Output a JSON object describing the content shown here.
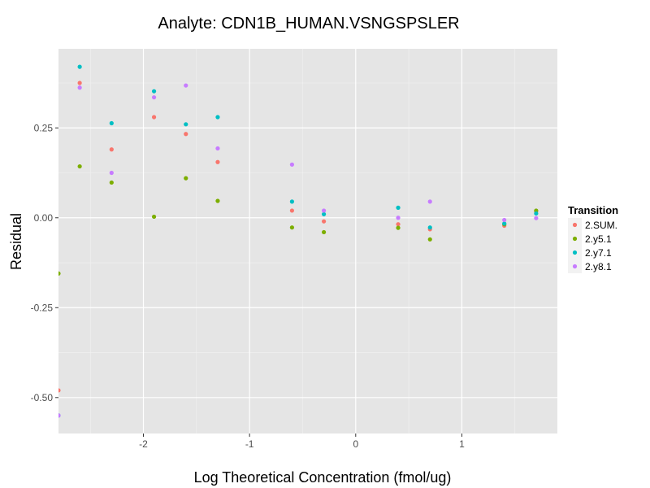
{
  "chart_data": {
    "type": "scatter",
    "title": "Analyte: CDN1B_HUMAN.VSNGSPSLER",
    "xlabel": "Log Theoretical Concentration (fmol/ug)",
    "ylabel": "Residual",
    "xlim": [
      -2.8,
      1.9
    ],
    "ylim": [
      -0.6,
      0.47
    ],
    "x_ticks": [
      -2,
      -1,
      0,
      1
    ],
    "x_tick_labels": [
      "-2",
      "-1",
      "0",
      "1"
    ],
    "y_ticks": [
      0.25,
      0.0,
      -0.25,
      -0.5
    ],
    "y_tick_labels": [
      "0.25",
      "0.00",
      "-0.25",
      "-0.50"
    ],
    "grid": true,
    "legend": {
      "title": "Transition",
      "position": "right"
    },
    "series": [
      {
        "name": "2.SUM.",
        "color": "#F8766D",
        "points": [
          [
            -2.8,
            -0.48
          ],
          [
            -2.6,
            0.375
          ],
          [
            -2.3,
            0.19
          ],
          [
            -1.9,
            0.28
          ],
          [
            -1.6,
            0.233
          ],
          [
            -1.3,
            0.155
          ],
          [
            -0.6,
            0.02
          ],
          [
            -0.3,
            -0.01
          ],
          [
            0.4,
            -0.018
          ],
          [
            0.7,
            -0.032
          ],
          [
            1.4,
            -0.022
          ],
          [
            1.7,
            0.018
          ]
        ]
      },
      {
        "name": "2.y5.1",
        "color": "#7CAE00",
        "points": [
          [
            -2.8,
            -0.155
          ],
          [
            -2.6,
            0.143
          ],
          [
            -2.3,
            0.098
          ],
          [
            -1.9,
            0.003
          ],
          [
            -1.6,
            0.11
          ],
          [
            -1.3,
            0.047
          ],
          [
            -0.6,
            -0.027
          ],
          [
            -0.3,
            -0.04
          ],
          [
            0.4,
            -0.028
          ],
          [
            0.7,
            -0.06
          ],
          [
            1.4,
            -0.018
          ],
          [
            1.7,
            0.02
          ]
        ]
      },
      {
        "name": "2.y7.1",
        "color": "#00BFC4",
        "points": [
          [
            -2.8,
            -0.55
          ],
          [
            -2.6,
            0.42
          ],
          [
            -2.3,
            0.263
          ],
          [
            -1.9,
            0.352
          ],
          [
            -1.6,
            0.26
          ],
          [
            -1.3,
            0.28
          ],
          [
            -0.6,
            0.045
          ],
          [
            -0.3,
            0.01
          ],
          [
            0.4,
            0.028
          ],
          [
            0.7,
            -0.027
          ],
          [
            1.4,
            -0.016
          ],
          [
            1.7,
            0.012
          ]
        ]
      },
      {
        "name": "2.y8.1",
        "color": "#C77CFF",
        "points": [
          [
            -2.8,
            -0.55
          ],
          [
            -2.6,
            0.362
          ],
          [
            -2.3,
            0.125
          ],
          [
            -1.9,
            0.335
          ],
          [
            -1.6,
            0.368
          ],
          [
            -1.3,
            0.193
          ],
          [
            -0.6,
            0.148
          ],
          [
            -0.3,
            0.02
          ],
          [
            0.4,
            0.0
          ],
          [
            0.7,
            0.045
          ],
          [
            1.4,
            -0.006
          ],
          [
            1.7,
            -0.001
          ]
        ]
      }
    ]
  }
}
